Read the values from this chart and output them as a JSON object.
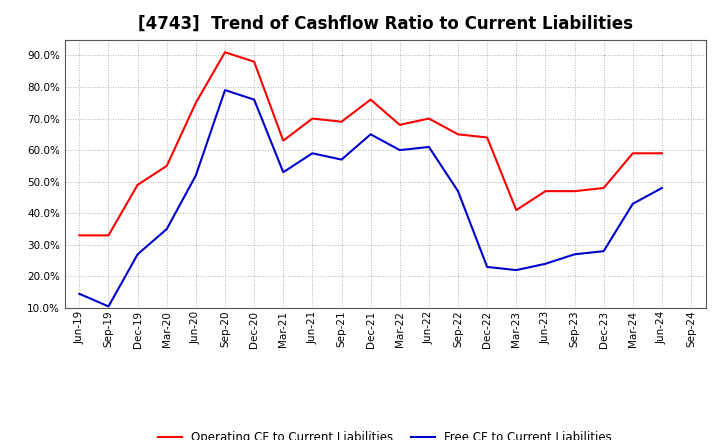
{
  "title": "[4743]  Trend of Cashflow Ratio to Current Liabilities",
  "x_labels": [
    "Jun-19",
    "Sep-19",
    "Dec-19",
    "Mar-20",
    "Jun-20",
    "Sep-20",
    "Dec-20",
    "Mar-21",
    "Jun-21",
    "Sep-21",
    "Dec-21",
    "Mar-22",
    "Jun-22",
    "Sep-22",
    "Dec-22",
    "Mar-23",
    "Jun-23",
    "Sep-23",
    "Dec-23",
    "Mar-24",
    "Jun-24",
    "Sep-24"
  ],
  "operating_cf": [
    0.33,
    0.33,
    0.49,
    0.55,
    0.75,
    0.91,
    0.88,
    0.63,
    0.7,
    0.69,
    0.76,
    0.68,
    0.7,
    0.65,
    0.64,
    0.41,
    0.47,
    0.47,
    0.48,
    0.59,
    0.59,
    null
  ],
  "free_cf": [
    0.145,
    0.105,
    0.27,
    0.35,
    0.52,
    0.79,
    0.76,
    0.53,
    0.59,
    0.57,
    0.65,
    0.6,
    0.61,
    0.47,
    0.23,
    0.22,
    0.24,
    0.27,
    0.28,
    0.43,
    0.48,
    null
  ],
  "operating_color": "#FF0000",
  "free_color": "#0000CD",
  "ylim_min": 0.1,
  "ylim_max": 0.95,
  "yticks": [
    0.1,
    0.2,
    0.3,
    0.4,
    0.5,
    0.6,
    0.7,
    0.8,
    0.9
  ],
  "background_color": "#FFFFFF",
  "grid_color": "#999999",
  "legend_operating": "Operating CF to Current Liabilities",
  "legend_free": "Free CF to Current Liabilities",
  "title_fontsize": 12,
  "axis_fontsize": 7.5,
  "legend_fontsize": 8.5,
  "line_width": 1.5
}
